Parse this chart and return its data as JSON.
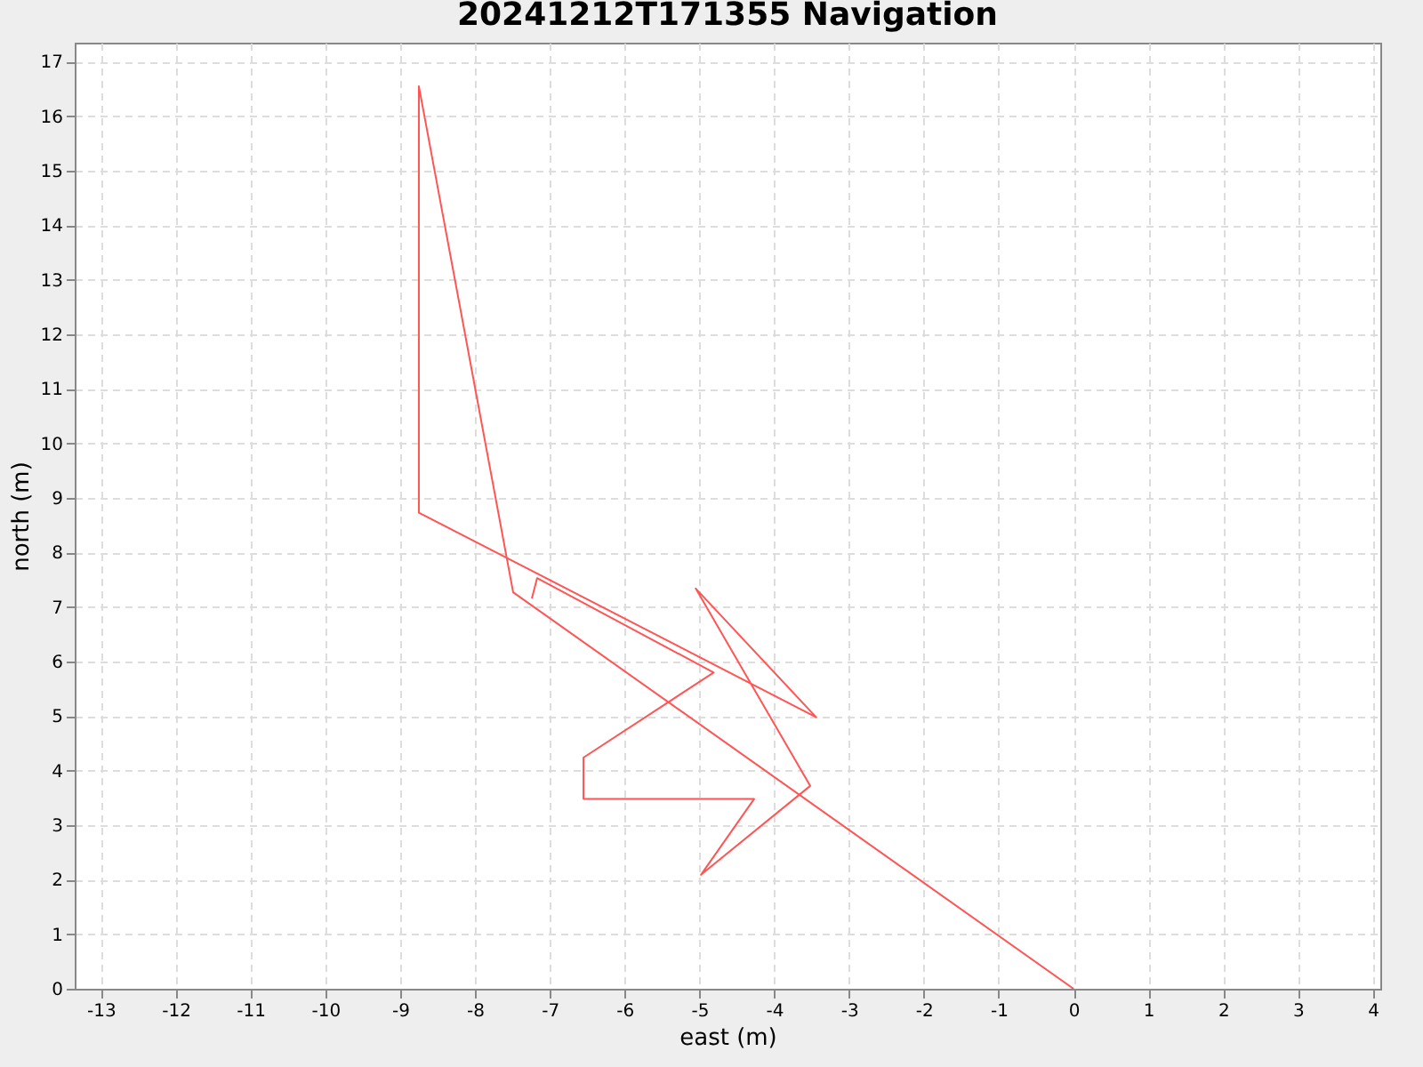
{
  "chart_data": {
    "type": "line",
    "title": "20241212T171355 Navigation",
    "xlabel": "east (m)",
    "ylabel": "north (m)",
    "x": [
      0,
      -7.49,
      -8.75,
      -8.75,
      -3.44,
      -5.05,
      -3.52,
      -4.98,
      -4.27,
      -6.55,
      -6.55,
      -4.81,
      -7.17,
      -7.24
    ],
    "series": [
      {
        "color": "#ff5555",
        "values": [
          0,
          7.27,
          16.55,
          8.73,
          4.98,
          7.34,
          3.72,
          2.09,
          3.48,
          3.48,
          4.24,
          5.8,
          7.53,
          7.16
        ]
      }
    ],
    "xlim": [
      -13.35,
      4.1
    ],
    "xticks": [
      -13,
      -12,
      -11,
      -10,
      -9,
      -8,
      -7,
      -6,
      -5,
      -4,
      -3,
      -2,
      -1,
      0,
      1,
      2,
      3,
      4
    ],
    "ylim": [
      0,
      17.35
    ],
    "yticks": [
      0,
      1,
      2,
      3,
      4,
      5,
      6,
      7,
      8,
      9,
      10,
      11,
      12,
      13,
      14,
      15,
      16,
      17
    ],
    "grid": true,
    "legend": false,
    "marker": "none",
    "line_style": "solid"
  }
}
